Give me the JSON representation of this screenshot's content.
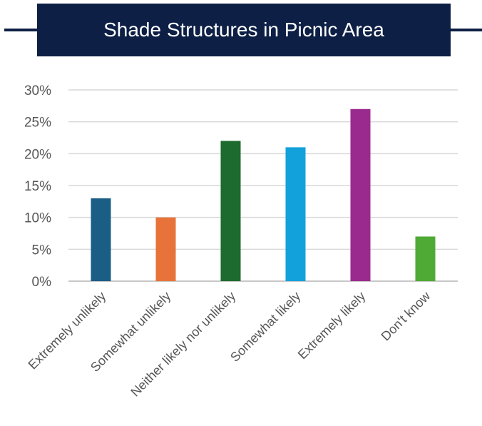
{
  "header": {
    "title": "Shade Structures in Picnic Area"
  },
  "chart_data": {
    "type": "bar",
    "title": "Shade Structures in Picnic Area",
    "xlabel": "",
    "ylabel": "",
    "categories": [
      "Extremely unlikely",
      "Somewhat unlikely",
      "Neither likely nor unlikely",
      "Somewhat likely",
      "Extremely likely",
      "Don't know"
    ],
    "values": [
      13,
      10,
      22,
      21,
      27,
      7
    ],
    "colors": [
      "#1a5e86",
      "#e8733a",
      "#1d6b2e",
      "#13a1dc",
      "#9b2a8e",
      "#4ea935"
    ],
    "ylim": [
      0,
      30
    ],
    "yticks": [
      "0%",
      "5%",
      "10%",
      "15%",
      "20%",
      "25%",
      "30%"
    ],
    "grid": true,
    "legend": "none"
  }
}
